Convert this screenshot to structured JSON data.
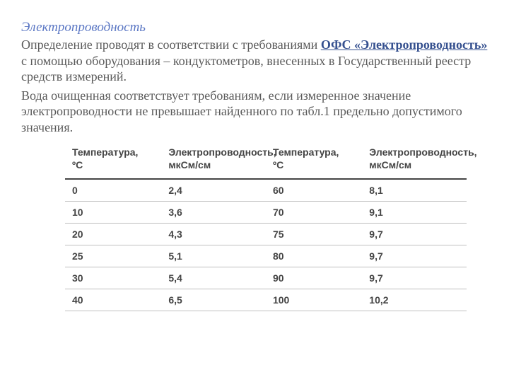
{
  "heading": "Электропроводность",
  "para1_a": "Определение проводят в соответствии с требованиями ",
  "para1_link": "ОФС «Электропроводность»",
  "para1_b": " с помощью оборудования – кондуктометров, внесенных в Государственный реестр средств измерений.",
  "para2": "Вода очищенная соответствует требованиям, если измеренное значение электропроводности не превышает найденного по табл.1 предельно допустимого значения.",
  "table": {
    "headers": {
      "temp": "Температура,\nºС",
      "cond": "Электропроводность,\nмкСм/см"
    },
    "rows": [
      {
        "t1": "0",
        "c1": "2,4",
        "t2": "60",
        "c2": "8,1"
      },
      {
        "t1": "10",
        "c1": "3,6",
        "t2": "70",
        "c2": "9,1"
      },
      {
        "t1": "20",
        "c1": "4,3",
        "t2": "75",
        "c2": "9,7"
      },
      {
        "t1": "25",
        "c1": "5,1",
        "t2": "80",
        "c2": "9,7"
      },
      {
        "t1": "30",
        "c1": "5,4",
        "t2": "90",
        "c2": "9,7"
      },
      {
        "t1": "40",
        "c1": "6,5",
        "t2": "100",
        "c2": "10,2"
      }
    ]
  }
}
